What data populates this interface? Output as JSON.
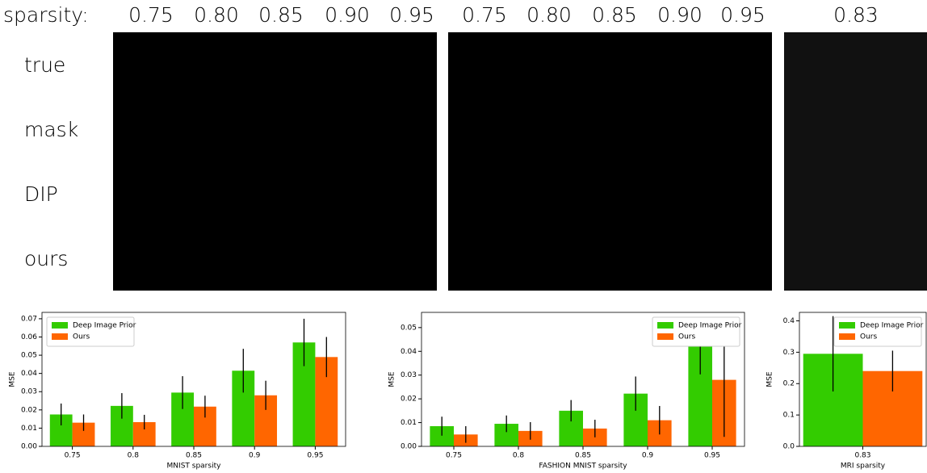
{
  "figure": {
    "header": "sparsity:",
    "columns": [
      [
        "0.75",
        "0.80",
        "0.85",
        "0.90",
        "0.95"
      ],
      [
        "0.75",
        "0.80",
        "0.85",
        "0.90",
        "0.95"
      ],
      [
        "0.83"
      ]
    ],
    "rows": [
      "true",
      "mask",
      "DIP",
      "ours"
    ]
  },
  "chart_data": [
    {
      "type": "bar",
      "xlabel": "MNIST sparsity",
      "ylabel": "MSE",
      "categories": [
        "0.75",
        "0.8",
        "0.85",
        "0.9",
        "0.95"
      ],
      "series": [
        {
          "name": "Deep Image Prior",
          "color": "#33cc00",
          "values": [
            0.0175,
            0.0222,
            0.0295,
            0.0415,
            0.057
          ],
          "errors": [
            0.006,
            0.007,
            0.009,
            0.012,
            0.013
          ]
        },
        {
          "name": "Ours",
          "color": "#ff6600",
          "values": [
            0.013,
            0.0133,
            0.0218,
            0.028,
            0.049
          ],
          "errors": [
            0.0045,
            0.004,
            0.006,
            0.008,
            0.011
          ]
        }
      ],
      "ylim": [
        0,
        0.0735
      ],
      "yticks": [
        {
          "value": 0,
          "label": "0.00"
        },
        {
          "value": 0.01,
          "label": "0.01"
        },
        {
          "value": 0.02,
          "label": "0.02"
        },
        {
          "value": 0.03,
          "label": "0.03"
        },
        {
          "value": 0.04,
          "label": "0.04"
        },
        {
          "value": 0.05,
          "label": "0.05"
        },
        {
          "value": 0.06,
          "label": "0.06"
        },
        {
          "value": 0.07,
          "label": "0.07"
        }
      ],
      "legend": "upper left"
    },
    {
      "type": "bar",
      "xlabel": "FASHION MNIST sparsity",
      "ylabel": "MSE",
      "categories": [
        "0.75",
        "0.8",
        "0.85",
        "0.9",
        "0.95"
      ],
      "series": [
        {
          "name": "Deep Image Prior",
          "color": "#33cc00",
          "values": [
            0.0085,
            0.0095,
            0.015,
            0.0222,
            0.0423
          ],
          "errors": [
            0.004,
            0.0035,
            0.0045,
            0.0072,
            0.012
          ]
        },
        {
          "name": "Ours",
          "color": "#ff6600",
          "values": [
            0.005,
            0.0065,
            0.0075,
            0.011,
            0.028
          ],
          "errors": [
            0.0035,
            0.0037,
            0.0037,
            0.006,
            0.024
          ]
        }
      ],
      "ylim": [
        0,
        0.0564
      ],
      "yticks": [
        {
          "value": 0,
          "label": "0.00"
        },
        {
          "value": 0.01,
          "label": "0.01"
        },
        {
          "value": 0.02,
          "label": "0.02"
        },
        {
          "value": 0.03,
          "label": "0.03"
        },
        {
          "value": 0.04,
          "label": "0.04"
        },
        {
          "value": 0.05,
          "label": "0.05"
        }
      ],
      "legend": "upper right"
    },
    {
      "type": "bar",
      "xlabel": "MRI sparsity",
      "ylabel": "MSE",
      "categories": [
        "0.83"
      ],
      "series": [
        {
          "name": "Deep Image Prior",
          "color": "#33cc00",
          "values": [
            0.295
          ],
          "errors": [
            0.12
          ]
        },
        {
          "name": "Ours",
          "color": "#ff6600",
          "values": [
            0.24
          ],
          "errors": [
            0.065
          ]
        }
      ],
      "ylim": [
        0,
        0.427
      ],
      "yticks": [
        {
          "value": 0,
          "label": "0.0"
        },
        {
          "value": 0.1,
          "label": "0.1"
        },
        {
          "value": 0.2,
          "label": "0.2"
        },
        {
          "value": 0.3,
          "label": "0.3"
        },
        {
          "value": 0.4,
          "label": "0.4"
        }
      ],
      "legend": "upper right"
    }
  ]
}
